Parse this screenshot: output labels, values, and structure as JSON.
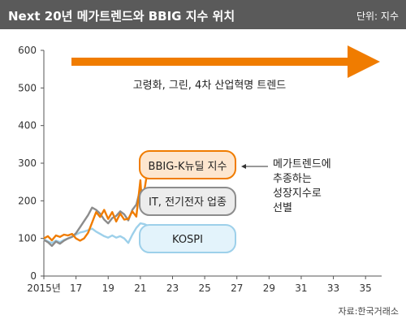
{
  "header": {
    "title": "Next 20년 메가트렌드와 BBIG 지수 위치",
    "unit": "단위: 지수"
  },
  "source": "자료:한국거래소",
  "chart_data": {
    "type": "line",
    "ylim": [
      0,
      600
    ],
    "yticks": [
      0,
      100,
      200,
      300,
      400,
      500,
      600
    ],
    "xlim": [
      2015,
      2036
    ],
    "xticks": [
      2015,
      2017,
      2019,
      2021,
      2023,
      2025,
      2027,
      2029,
      2031,
      2033,
      2035
    ],
    "xtick_labels": [
      "2015년",
      "17",
      "19",
      "21",
      "23",
      "25",
      "27",
      "29",
      "31",
      "33",
      "35"
    ],
    "grid": false,
    "series": [
      {
        "name": "BBIG-K뉴딜 지수",
        "color": "#f07c00",
        "points": [
          [
            2015.0,
            100
          ],
          [
            2015.25,
            106
          ],
          [
            2015.5,
            95
          ],
          [
            2015.75,
            108
          ],
          [
            2016.0,
            104
          ],
          [
            2016.25,
            110
          ],
          [
            2016.5,
            108
          ],
          [
            2016.75,
            112
          ],
          [
            2017.0,
            100
          ],
          [
            2017.25,
            94
          ],
          [
            2017.5,
            100
          ],
          [
            2017.75,
            115
          ],
          [
            2018.0,
            142
          ],
          [
            2018.25,
            170
          ],
          [
            2018.5,
            157
          ],
          [
            2018.75,
            176
          ],
          [
            2019.0,
            152
          ],
          [
            2019.25,
            170
          ],
          [
            2019.5,
            145
          ],
          [
            2019.75,
            166
          ],
          [
            2020.0,
            150
          ],
          [
            2020.25,
            152
          ],
          [
            2020.5,
            172
          ],
          [
            2020.75,
            158
          ],
          [
            2021.0,
            255
          ],
          [
            2021.1,
            190
          ],
          [
            2021.25,
            228
          ],
          [
            2021.4,
            268
          ],
          [
            2021.55,
            300
          ],
          [
            2021.7,
            270
          ],
          [
            2021.8,
            310
          ]
        ]
      },
      {
        "name": "IT, 전기전자 업종",
        "color": "#8c8c8c",
        "points": [
          [
            2015.0,
            96
          ],
          [
            2015.25,
            90
          ],
          [
            2015.5,
            80
          ],
          [
            2015.75,
            92
          ],
          [
            2016.0,
            86
          ],
          [
            2016.25,
            94
          ],
          [
            2016.5,
            100
          ],
          [
            2016.75,
            104
          ],
          [
            2017.0,
            114
          ],
          [
            2017.25,
            130
          ],
          [
            2017.5,
            146
          ],
          [
            2017.75,
            162
          ],
          [
            2018.0,
            182
          ],
          [
            2018.25,
            176
          ],
          [
            2018.5,
            166
          ],
          [
            2018.75,
            150
          ],
          [
            2019.0,
            140
          ],
          [
            2019.25,
            154
          ],
          [
            2019.5,
            160
          ],
          [
            2019.75,
            172
          ],
          [
            2020.0,
            164
          ],
          [
            2020.25,
            148
          ],
          [
            2020.5,
            176
          ],
          [
            2020.75,
            190
          ],
          [
            2021.0,
            232
          ],
          [
            2021.25,
            218
          ],
          [
            2021.5,
            224
          ],
          [
            2021.8,
            218
          ]
        ]
      },
      {
        "name": "KOSPI",
        "color": "#9dd0ea",
        "points": [
          [
            2015.0,
            98
          ],
          [
            2015.25,
            92
          ],
          [
            2015.5,
            88
          ],
          [
            2015.75,
            94
          ],
          [
            2016.0,
            90
          ],
          [
            2016.25,
            96
          ],
          [
            2016.5,
            100
          ],
          [
            2016.75,
            104
          ],
          [
            2017.0,
            110
          ],
          [
            2017.25,
            116
          ],
          [
            2017.5,
            118
          ],
          [
            2017.75,
            122
          ],
          [
            2018.0,
            126
          ],
          [
            2018.25,
            118
          ],
          [
            2018.5,
            112
          ],
          [
            2018.75,
            106
          ],
          [
            2019.0,
            102
          ],
          [
            2019.25,
            108
          ],
          [
            2019.5,
            102
          ],
          [
            2019.75,
            106
          ],
          [
            2020.0,
            100
          ],
          [
            2020.25,
            88
          ],
          [
            2020.5,
            110
          ],
          [
            2020.75,
            128
          ],
          [
            2021.0,
            140
          ],
          [
            2021.25,
            138
          ],
          [
            2021.5,
            133
          ],
          [
            2021.8,
            130
          ]
        ]
      }
    ],
    "trend_arrow": {
      "label": "고령화, 그린, 4차 산업혁명 트렌드",
      "color": "#f07c00"
    },
    "boxes": [
      {
        "label": "BBIG-K뉴딜 지수",
        "fill": "#fde6cf",
        "border": "#f07c00"
      },
      {
        "label": "IT, 전기전자 업종",
        "fill": "#ececec",
        "border": "#8c8c8c"
      },
      {
        "label": "KOSPI",
        "fill": "#e3f3fb",
        "border": "#9dd0ea"
      }
    ],
    "annotation": {
      "lines": [
        "메가트렌드에",
        "추종하는",
        "성장지수로",
        "선별"
      ]
    }
  }
}
